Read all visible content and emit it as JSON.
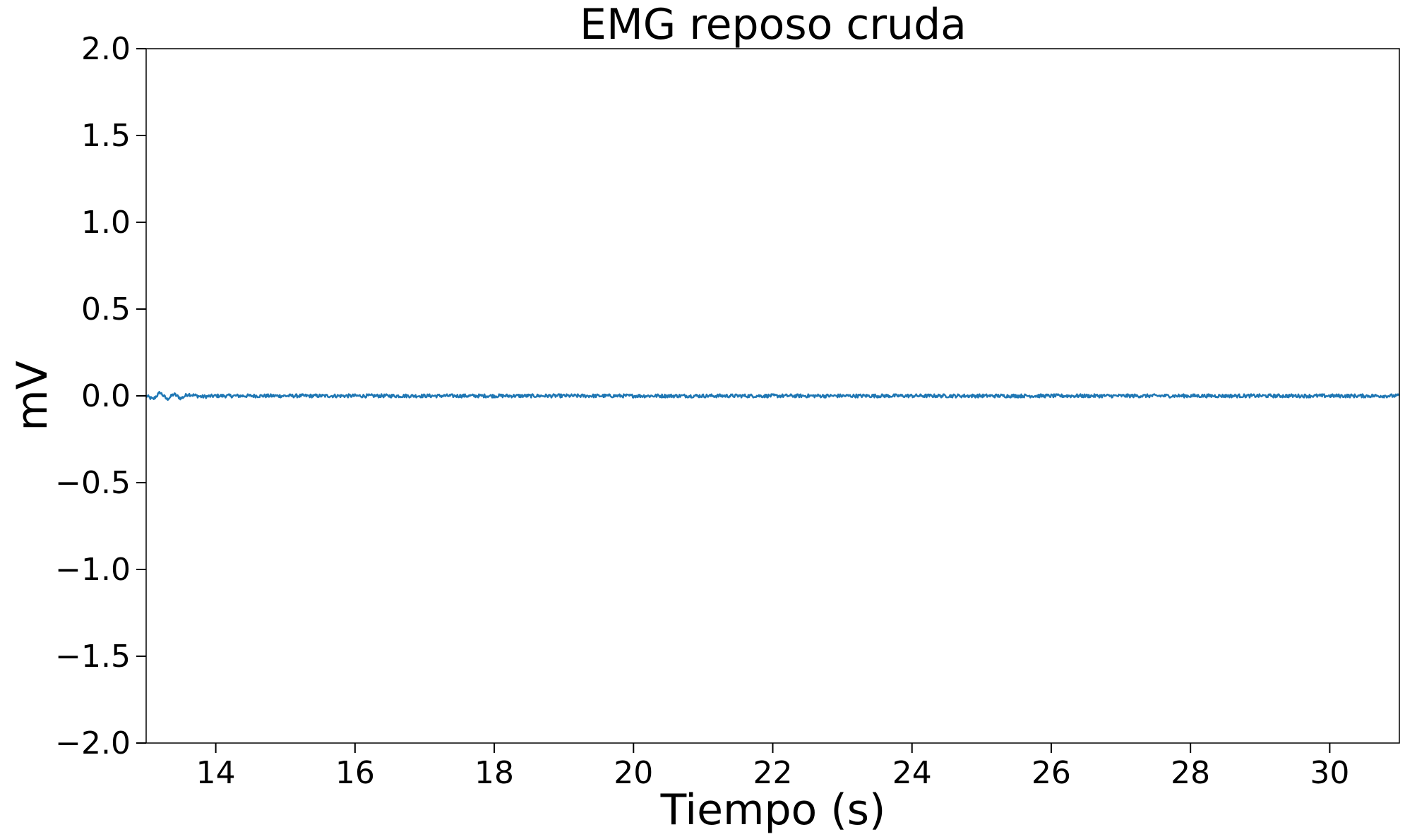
{
  "chart_data": {
    "type": "line",
    "title": "EMG reposo cruda",
    "xlabel": "Tiempo (s)",
    "ylabel": "mV",
    "xlim": [
      13.0,
      31.0
    ],
    "ylim": [
      -2.0,
      2.0
    ],
    "x_ticks": [
      14,
      16,
      18,
      20,
      22,
      24,
      26,
      28,
      30
    ],
    "x_tick_labels": [
      "14",
      "16",
      "18",
      "20",
      "22",
      "24",
      "26",
      "28",
      "30"
    ],
    "y_ticks": [
      -2.0,
      -1.5,
      -1.0,
      -0.5,
      0.0,
      0.5,
      1.0,
      1.5,
      2.0
    ],
    "y_tick_labels": [
      "−2.0",
      "−1.5",
      "−1.0",
      "−0.5",
      "0.0",
      "0.5",
      "1.0",
      "1.5",
      "2.0"
    ],
    "grid": false,
    "legend": "none",
    "series": [
      {
        "color": "#1f77b4",
        "x": [
          13.0,
          13.1,
          13.2,
          13.3,
          13.4,
          13.5,
          13.6,
          13.8,
          14.0,
          15.0,
          16.0,
          17.0,
          18.0,
          19.0,
          20.0,
          21.0,
          22.0,
          23.0,
          24.0,
          25.0,
          26.0,
          27.0,
          28.0,
          29.0,
          30.0,
          31.0
        ],
        "values": [
          0.0,
          -0.02,
          0.02,
          -0.02,
          0.01,
          -0.015,
          0.01,
          -0.005,
          0.0,
          0.0,
          0.0,
          0.0,
          0.0,
          0.0,
          0.0,
          0.0,
          0.0,
          0.0,
          0.0,
          0.0,
          0.0,
          0.0,
          0.0,
          0.0,
          0.0,
          0.0
        ],
        "noise_amplitude": 0.01
      }
    ]
  }
}
